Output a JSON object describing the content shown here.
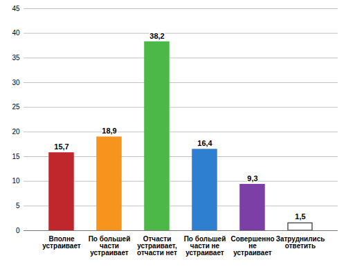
{
  "chart_data": {
    "type": "bar",
    "categories": [
      "Вполне устраивает",
      "По большей части устраивает",
      "Отчасти устраивает, отчасти нет",
      "По большей части не устраивает",
      "Совершенно не устраивает",
      "Затруднились ответить"
    ],
    "values": [
      15.7,
      18.9,
      38.2,
      16.4,
      9.3,
      1.5
    ],
    "value_labels": [
      "15,7",
      "18,9",
      "38,2",
      "16,4",
      "9,3",
      "1,5"
    ],
    "colors": [
      "#c0272d",
      "#f7941d",
      "#4cb848",
      "#2f7fd0",
      "#7b3fa6",
      "#ffffff"
    ],
    "ylim": [
      0,
      45
    ],
    "yticks": [
      0,
      5,
      10,
      15,
      20,
      25,
      30,
      35,
      40,
      45
    ],
    "grid": true,
    "data_labels": true
  }
}
